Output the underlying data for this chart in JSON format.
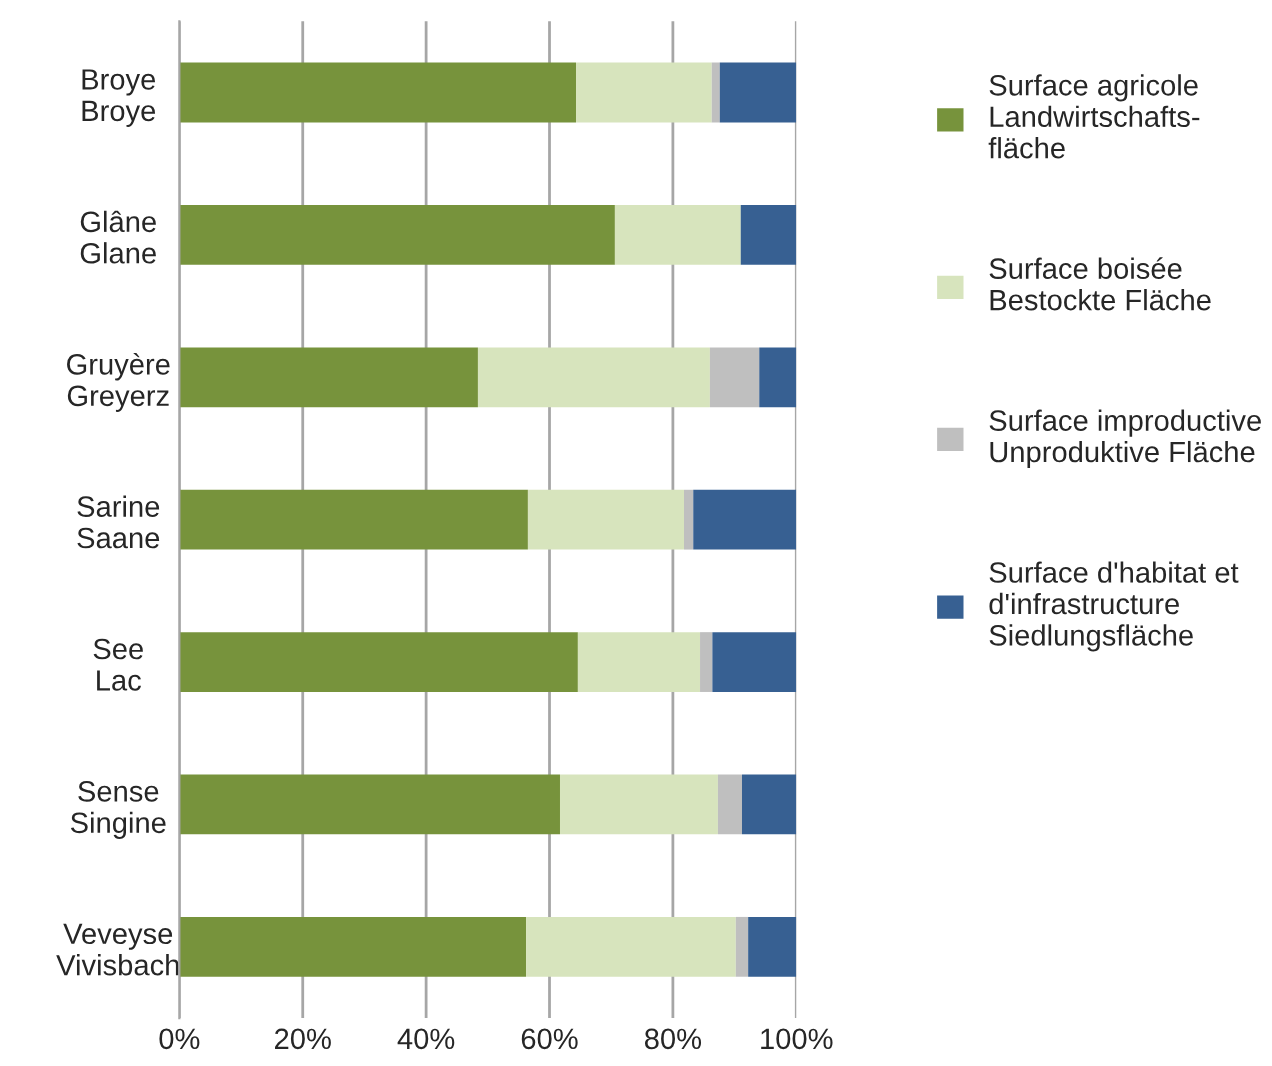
{
  "chart_data": {
    "type": "bar",
    "orientation": "horizontal",
    "stacked": true,
    "categories": [
      "Broye\nBroye",
      "Glâne\nGlane",
      "Gruyère\nGreyerz",
      "Sarine\nSaane",
      "See\nLac",
      "Sense\nSingine",
      "Veveyse\nVivisbach"
    ],
    "series": [
      {
        "name": "Surface agricole\nLandwirtschafts-\nfläche",
        "color": "#77933c",
        "values": [
          64.3,
          70.6,
          48.4,
          56.5,
          64.6,
          61.7,
          56.2
        ]
      },
      {
        "name": "Surface boisée\nBestockte Fläche",
        "color": "#d7e4bd",
        "values": [
          22.0,
          20.4,
          37.6,
          25.3,
          19.8,
          25.6,
          34.0
        ]
      },
      {
        "name": "Surface improductive\nUnproduktive Fläche",
        "color": "#bfbfbf",
        "values": [
          1.3,
          0,
          8.0,
          1.5,
          2.0,
          3.9,
          2.0
        ]
      },
      {
        "name": "Surface d'habitat et\nd'infrastructure\nSiedlungsfläche",
        "color": "#376092",
        "values": [
          12.4,
          9.0,
          6.0,
          16.7,
          13.6,
          8.8,
          7.8
        ]
      }
    ],
    "xlim": [
      0,
      100
    ],
    "xticks": [
      {
        "value": 0,
        "label": "0%"
      },
      {
        "value": 20,
        "label": "20%"
      },
      {
        "value": 40,
        "label": "40%"
      },
      {
        "value": 60,
        "label": "60%"
      },
      {
        "value": 80,
        "label": "80%"
      },
      {
        "value": 100,
        "label": "100%"
      }
    ],
    "grid": "x",
    "legend": "right"
  }
}
